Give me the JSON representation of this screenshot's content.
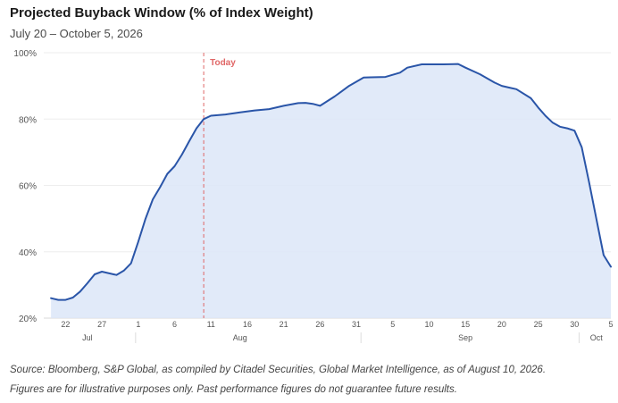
{
  "header": {
    "title": "Projected Buyback Window (% of Index Weight)",
    "subtitle": "July 20 – October 5, 2026"
  },
  "footnotes": {
    "source": "Source: Bloomberg, S&P Global, as compiled by Citadel Securities, Global Market Intelligence, as of August 10, 2026.",
    "disclaimer": "Figures are for illustrative purposes only. Past performance figures do not guarantee future results."
  },
  "colors": {
    "line": "#2a55a8",
    "fill": "#dce6f8",
    "today_marker": "#e06666",
    "grid": "#eeeeee",
    "axis_text": "#555555"
  },
  "chart_data": {
    "type": "area",
    "x": [
      "2026-07-20",
      "2026-07-21",
      "2026-07-22",
      "2026-07-23",
      "2026-07-24",
      "2026-07-25",
      "2026-07-26",
      "2026-07-27",
      "2026-07-28",
      "2026-07-29",
      "2026-07-30",
      "2026-07-31",
      "2026-08-01",
      "2026-08-02",
      "2026-08-03",
      "2026-08-04",
      "2026-08-05",
      "2026-08-06",
      "2026-08-07",
      "2026-08-08",
      "2026-08-09",
      "2026-08-10",
      "2026-08-11",
      "2026-08-13",
      "2026-08-15",
      "2026-08-17",
      "2026-08-19",
      "2026-08-21",
      "2026-08-23",
      "2026-08-24",
      "2026-08-25",
      "2026-08-26",
      "2026-08-28",
      "2026-08-30",
      "2026-09-01",
      "2026-09-02",
      "2026-09-04",
      "2026-09-06",
      "2026-09-07",
      "2026-09-09",
      "2026-09-12",
      "2026-09-14",
      "2026-09-15",
      "2026-09-17",
      "2026-09-19",
      "2026-09-20",
      "2026-09-21",
      "2026-09-22",
      "2026-09-24",
      "2026-09-25",
      "2026-09-26",
      "2026-09-27",
      "2026-09-28",
      "2026-09-29",
      "2026-09-30",
      "2026-10-01",
      "2026-10-02",
      "2026-10-03",
      "2026-10-04",
      "2026-10-05"
    ],
    "values": [
      26.0,
      25.5,
      25.5,
      26.2,
      28.0,
      30.5,
      33.2,
      34.0,
      33.5,
      33.0,
      34.3,
      36.5,
      43.0,
      50.0,
      55.8,
      59.5,
      63.5,
      65.8,
      69.3,
      73.3,
      77.2,
      80.0,
      81.0,
      81.4,
      82.0,
      82.6,
      83.0,
      84.0,
      84.8,
      84.9,
      84.6,
      84.0,
      86.8,
      90.0,
      92.5,
      92.6,
      92.7,
      94.0,
      95.5,
      96.5,
      96.5,
      96.6,
      95.5,
      93.5,
      91.0,
      90.0,
      89.5,
      89.0,
      86.3,
      83.5,
      81.0,
      78.9,
      77.7,
      77.2,
      76.5,
      71.5,
      61.0,
      50.0,
      39.0,
      35.5
    ],
    "end_value": 35.5,
    "end_date": "2026-10-05",
    "today_date": "2026-08-10",
    "today_label": "Today",
    "ylim": [
      20,
      100
    ],
    "y_ticks": [
      {
        "value": 20,
        "label": "20%"
      },
      {
        "value": 40,
        "label": "40%"
      },
      {
        "value": 60,
        "label": "60%"
      },
      {
        "value": 80,
        "label": "80%"
      },
      {
        "value": 100,
        "label": "100%"
      }
    ],
    "x_range": [
      "2026-07-19",
      "2026-10-05"
    ],
    "x_ticks": [
      {
        "date": "2026-07-22",
        "label": "22"
      },
      {
        "date": "2026-07-27",
        "label": "27"
      },
      {
        "date": "2026-08-01",
        "label": "1"
      },
      {
        "date": "2026-08-06",
        "label": "6"
      },
      {
        "date": "2026-08-11",
        "label": "11"
      },
      {
        "date": "2026-08-16",
        "label": "16"
      },
      {
        "date": "2026-08-21",
        "label": "21"
      },
      {
        "date": "2026-08-26",
        "label": "26"
      },
      {
        "date": "2026-08-31",
        "label": "31"
      },
      {
        "date": "2026-09-05",
        "label": "5"
      },
      {
        "date": "2026-09-10",
        "label": "10"
      },
      {
        "date": "2026-09-15",
        "label": "15"
      },
      {
        "date": "2026-09-20",
        "label": "20"
      },
      {
        "date": "2026-09-25",
        "label": "25"
      },
      {
        "date": "2026-09-30",
        "label": "30"
      },
      {
        "date": "2026-10-05",
        "label": "5"
      }
    ],
    "month_labels": [
      {
        "date": "2026-07-25",
        "label": "Jul"
      },
      {
        "date": "2026-08-15",
        "label": "Aug"
      },
      {
        "date": "2026-09-15",
        "label": "Sep"
      },
      {
        "date": "2026-10-03",
        "label": "Oct"
      }
    ],
    "month_boundaries": [
      "2026-08-01",
      "2026-09-01",
      "2026-10-01"
    ],
    "grid": true,
    "legend": "none"
  }
}
